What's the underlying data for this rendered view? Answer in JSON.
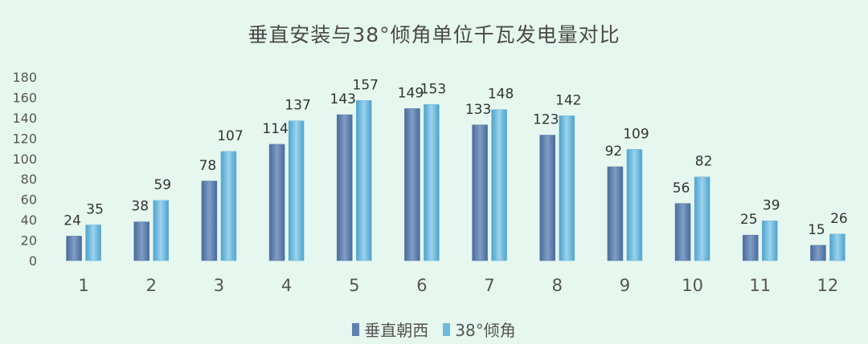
{
  "chart_data": {
    "type": "bar",
    "title": "垂直安装与38°倾角单位千瓦发电量对比",
    "categories": [
      "1",
      "2",
      "3",
      "4",
      "5",
      "6",
      "7",
      "8",
      "9",
      "10",
      "11",
      "12"
    ],
    "series": [
      {
        "name": "垂直朝西",
        "color": "#5f7fae",
        "values": [
          24,
          38,
          78,
          114,
          143,
          149,
          133,
          123,
          92,
          56,
          25,
          15
        ]
      },
      {
        "name": "38°倾角",
        "color": "#6fb8db",
        "values": [
          35,
          59,
          107,
          137,
          157,
          153,
          148,
          142,
          109,
          82,
          39,
          26
        ]
      }
    ],
    "ylim": [
      0,
      180
    ],
    "yticks": [
      0,
      20,
      40,
      60,
      80,
      100,
      120,
      140,
      160,
      180
    ],
    "xlabel": "",
    "ylabel": "",
    "grid": false,
    "legend": "bottom",
    "data_labels": true
  }
}
